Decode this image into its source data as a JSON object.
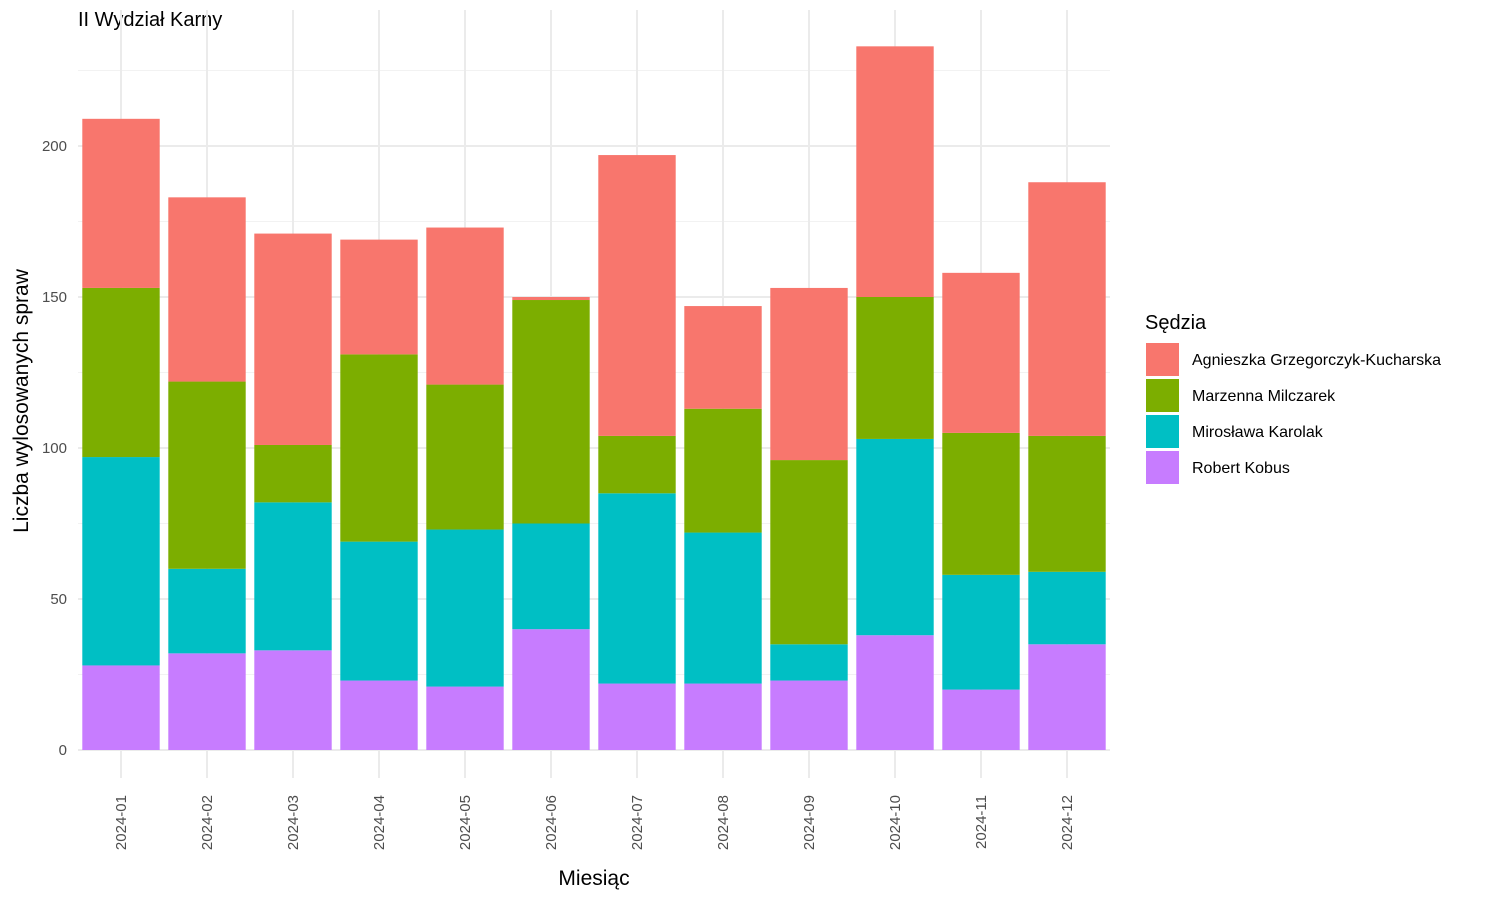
{
  "chart_data": {
    "type": "bar",
    "stacked": true,
    "title": "II Wydział Karny",
    "xlabel": "Miesiąc",
    "ylabel": "Liczba wylosowanych spraw",
    "ylim": [
      0,
      240
    ],
    "yticks": [
      0,
      50,
      100,
      150,
      200
    ],
    "grid": true,
    "legend_position": "right",
    "legend_title": "Sędzia",
    "categories": [
      "2024-01",
      "2024-02",
      "2024-03",
      "2024-04",
      "2024-05",
      "2024-06",
      "2024-07",
      "2024-08",
      "2024-09",
      "2024-10",
      "2024-11",
      "2024-12"
    ],
    "series": [
      {
        "name": "Agnieszka Grzegorczyk-Kucharska",
        "color": "#F8766D",
        "values": [
          56,
          61,
          70,
          38,
          52,
          1,
          93,
          34,
          57,
          83,
          53,
          84
        ]
      },
      {
        "name": "Marzenna Milczarek",
        "color": "#7CAE00",
        "values": [
          56,
          62,
          19,
          62,
          48,
          74,
          19,
          41,
          61,
          47,
          47,
          45
        ]
      },
      {
        "name": "Mirosława Karolak",
        "color": "#00BFC4",
        "values": [
          69,
          28,
          49,
          46,
          52,
          35,
          63,
          50,
          12,
          65,
          38,
          24
        ]
      },
      {
        "name": "Robert Kobus",
        "color": "#C77CFF",
        "values": [
          28,
          32,
          33,
          23,
          21,
          40,
          22,
          22,
          23,
          38,
          20,
          35
        ]
      }
    ]
  }
}
